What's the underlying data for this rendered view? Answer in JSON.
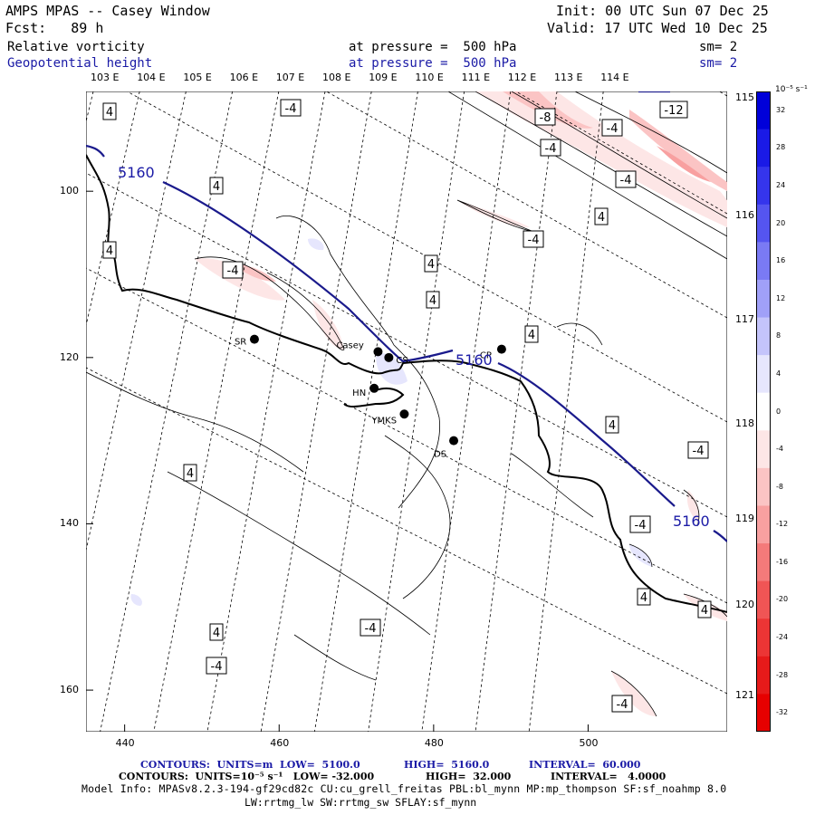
{
  "header": {
    "title_left": "AMPS MPAS -- Casey Window",
    "fcst": "Fcst:   89 h",
    "init": "Init: 00 UTC Sun 07 Dec 25",
    "valid": "Valid: 17 UTC Wed 10 Dec 25",
    "field1_name": "Relative vorticity",
    "field1_pressure": "at pressure =  500 hPa",
    "field1_sm": "sm= 2",
    "field2_name": "Geopotential height",
    "field2_pressure": "at pressure =  500 hPa",
    "field2_sm": "sm= 2"
  },
  "axes": {
    "top_lon_labels": [
      "103 E",
      "104 E",
      "105 E",
      "106 E",
      "107 E",
      "108 E",
      "109 E",
      "110 E",
      "111 E",
      "112 E",
      "113 E",
      "114 E"
    ],
    "right_lon_labels": [
      "115 E",
      "116 E",
      "117 E",
      "118 E",
      "119 E",
      "120 E",
      "121 E"
    ],
    "x_ticks": [
      440,
      460,
      480,
      500
    ],
    "y_ticks": [
      100,
      120,
      140,
      160
    ],
    "xlim": [
      435,
      518
    ],
    "ylim": [
      165,
      88
    ]
  },
  "stations": [
    {
      "label": "SR",
      "x": 456.8,
      "y": 117.8
    },
    {
      "label": "Casey",
      "x": 472.8,
      "y": 119.3
    },
    {
      "label": "CS",
      "x": 474.2,
      "y": 120.0
    },
    {
      "label": "HN",
      "x": 472.3,
      "y": 123.7
    },
    {
      "label": "YMKS",
      "x": 476.2,
      "y": 126.8
    },
    {
      "label": "DS",
      "x": 482.6,
      "y": 130.0
    },
    {
      "label": "CP",
      "x": 488.8,
      "y": 119.0
    }
  ],
  "height_labels": [
    "5160",
    "5160",
    "5160"
  ],
  "vort_labels": [
    "4",
    "-4",
    "-8",
    "-4",
    "-12",
    "-4",
    "4",
    "4",
    "4",
    "-4",
    "-4",
    "-4",
    "4",
    "4",
    "4",
    "-4",
    "4",
    "4",
    "-4",
    "4",
    "4",
    "-4",
    "-4",
    "4",
    "-4"
  ],
  "colorbar": {
    "unit": "10⁻⁵ s⁻¹",
    "levels": [
      "32",
      "28",
      "24",
      "20",
      "16",
      "12",
      "8",
      "4",
      "0",
      "-4",
      "-8",
      "-12",
      "-16",
      "-20",
      "-24",
      "-28",
      "-32"
    ],
    "colors": [
      "#0000d9",
      "#1a1ae6",
      "#3535ec",
      "#5555f0",
      "#7a7af4",
      "#a0a0f8",
      "#c4c4fb",
      "#e6e6fd",
      "#ffffff",
      "#fde6e6",
      "#fbc4c4",
      "#f8a0a0",
      "#f47a7a",
      "#f05555",
      "#ec3535",
      "#e61a1a",
      "#e60000"
    ]
  },
  "footer": {
    "line1_a": "CONTOURS:  UNITS=m  LOW=  5100.0",
    "line1_b": "HIGH=  5160.0",
    "line1_c": "INTERVAL=  60.000",
    "line2_a": "CONTOURS:  UNITS=10⁻⁵ s⁻¹   LOW= -32.000",
    "line2_b": "HIGH=  32.000",
    "line2_c": "INTERVAL=   4.0000",
    "line3": "Model Info: MPASv8.2.3-194-gf29cd82c CU:cu_grell_freitas PBL:bl_mynn MP:mp_thompson SF:sf_noahmp 8.0",
    "line4": "LW:rrtmg_lw SW:rrtmg_sw SFLAY:sf_mynn"
  }
}
